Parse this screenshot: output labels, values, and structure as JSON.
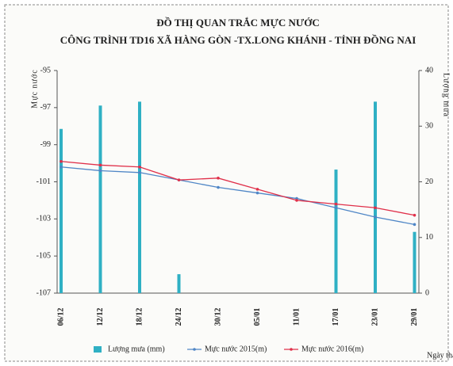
{
  "chart_data": {
    "type": "bar-line",
    "title": "ĐỒ THỊ QUAN TRẮC MỰC NƯỚC",
    "subtitle": "CÔNG TRÌNH TD16 XÃ HÀNG GÒN -TX.LONG KHÁNH - TỈNH ĐỒNG NAI",
    "ylabel": "Mực nước",
    "y2label": "Lượng mưa",
    "xlabel": "Ngày tháng",
    "categories": [
      "06/12",
      "12/12",
      "18/12",
      "24/12",
      "30/12",
      "05/01",
      "11/01",
      "17/01",
      "23/01",
      "29/01"
    ],
    "ylim": [
      -107,
      -95
    ],
    "yticks": [
      -95,
      -97,
      -99,
      -101,
      -103,
      -105,
      -107
    ],
    "y2lim": [
      0,
      40
    ],
    "y2ticks": [
      0,
      10,
      20,
      30,
      40
    ],
    "series": [
      {
        "name": "Lượng mưa (mm)",
        "type": "bar",
        "axis": "y2",
        "color": "#2fb0c4",
        "values": [
          29.5,
          33.7,
          34.4,
          3.4,
          0,
          0,
          0,
          22.2,
          34.4,
          11
        ]
      },
      {
        "name": "Mực nước 2015(m)",
        "type": "line",
        "color": "#4f86c6",
        "values": [
          -100.2,
          -100.4,
          -100.5,
          -100.9,
          -101.3,
          -101.6,
          -101.9,
          -102.4,
          -102.9,
          -103.3
        ]
      },
      {
        "name": "Mực nước 2016(m)",
        "type": "line",
        "color": "#e0304a",
        "values": [
          -99.9,
          -100.1,
          -100.2,
          -100.9,
          -100.8,
          -101.4,
          -102.0,
          -102.2,
          -102.4,
          -102.8
        ]
      }
    ]
  }
}
